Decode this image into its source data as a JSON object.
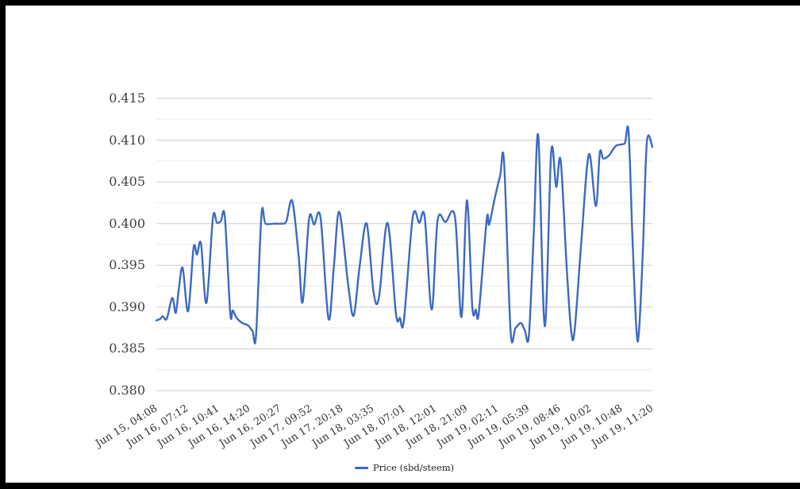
{
  "frame": {
    "color": "#000000",
    "background": "#ffffff"
  },
  "chart_data": {
    "type": "line",
    "title": "",
    "legend": {
      "label": "Price (sbd/steem)",
      "position": "bottom-center"
    },
    "grid": {
      "major_color": "#cccccc",
      "minor_color": "#ebebeb",
      "vertical": false
    },
    "y_axis": {
      "min": 0.38,
      "max": 0.415,
      "major_step": 0.005,
      "minor_step": 0.0025,
      "tick_labels": [
        "0.415",
        "0.410",
        "0.405",
        "0.400",
        "0.395",
        "0.390",
        "0.385",
        "0.380"
      ],
      "label_color": "#404040"
    },
    "x_axis": {
      "tick_labels": [
        "Jun 15, 04:08",
        "Jun 16, 07:12",
        "Jun 16, 10:41",
        "Jun 16, 14:20",
        "Jun 16, 20:27",
        "Jun 17, 09:52",
        "Jun 17, 20:18",
        "Jun 18, 03:35",
        "Jun 18, 07:01",
        "Jun 18, 12:01",
        "Jun 18, 21:09",
        "Jun 19, 02:11",
        "Jun 19, 05:39",
        "Jun 19, 08:46",
        "Jun 19, 10:02",
        "Jun 19, 10:48",
        "Jun 19, 11:20"
      ],
      "label_color": "#333333",
      "label_rotation_deg": -32
    },
    "series": [
      {
        "name": "Price (sbd/steem)",
        "color": "#3d6ac0",
        "points": [
          [
            0.0,
            0.3884
          ],
          [
            0.008,
            0.3886
          ],
          [
            0.013,
            0.3889
          ],
          [
            0.021,
            0.3886
          ],
          [
            0.032,
            0.3911
          ],
          [
            0.039,
            0.3893
          ],
          [
            0.045,
            0.392
          ],
          [
            0.053,
            0.3947
          ],
          [
            0.064,
            0.3895
          ],
          [
            0.075,
            0.3971
          ],
          [
            0.082,
            0.3963
          ],
          [
            0.09,
            0.3976
          ],
          [
            0.101,
            0.3905
          ],
          [
            0.114,
            0.4007
          ],
          [
            0.122,
            0.4001
          ],
          [
            0.13,
            0.4003
          ],
          [
            0.138,
            0.4008
          ],
          [
            0.149,
            0.3893
          ],
          [
            0.154,
            0.3896
          ],
          [
            0.162,
            0.3887
          ],
          [
            0.173,
            0.3881
          ],
          [
            0.185,
            0.3878
          ],
          [
            0.194,
            0.3871
          ],
          [
            0.201,
            0.3866
          ],
          [
            0.212,
            0.4011
          ],
          [
            0.22,
            0.4
          ],
          [
            0.238,
            0.4
          ],
          [
            0.252,
            0.4
          ],
          [
            0.262,
            0.4003
          ],
          [
            0.274,
            0.4027
          ],
          [
            0.287,
            0.396
          ],
          [
            0.295,
            0.3906
          ],
          [
            0.308,
            0.4006
          ],
          [
            0.318,
            0.3999
          ],
          [
            0.331,
            0.4007
          ],
          [
            0.347,
            0.3886
          ],
          [
            0.358,
            0.395
          ],
          [
            0.369,
            0.4014
          ],
          [
            0.387,
            0.3925
          ],
          [
            0.398,
            0.389
          ],
          [
            0.41,
            0.395
          ],
          [
            0.424,
            0.4
          ],
          [
            0.438,
            0.3917
          ],
          [
            0.449,
            0.3912
          ],
          [
            0.466,
            0.4001
          ],
          [
            0.483,
            0.3892
          ],
          [
            0.491,
            0.3887
          ],
          [
            0.499,
            0.3884
          ],
          [
            0.517,
            0.4008
          ],
          [
            0.53,
            0.4001
          ],
          [
            0.541,
            0.4008
          ],
          [
            0.555,
            0.3897
          ],
          [
            0.567,
            0.4004
          ],
          [
            0.583,
            0.4002
          ],
          [
            0.602,
            0.4008
          ],
          [
            0.615,
            0.3888
          ],
          [
            0.626,
            0.4028
          ],
          [
            0.637,
            0.39
          ],
          [
            0.644,
            0.3897
          ],
          [
            0.65,
            0.3893
          ],
          [
            0.666,
            0.4005
          ],
          [
            0.671,
            0.3999
          ],
          [
            0.682,
            0.403
          ],
          [
            0.693,
            0.4057
          ],
          [
            0.701,
            0.4074
          ],
          [
            0.714,
            0.3872
          ],
          [
            0.724,
            0.3875
          ],
          [
            0.735,
            0.3881
          ],
          [
            0.743,
            0.3872
          ],
          [
            0.751,
            0.3866
          ],
          [
            0.761,
            0.399
          ],
          [
            0.77,
            0.4105
          ],
          [
            0.783,
            0.3877
          ],
          [
            0.796,
            0.4086
          ],
          [
            0.806,
            0.4044
          ],
          [
            0.815,
            0.4076
          ],
          [
            0.827,
            0.395
          ],
          [
            0.836,
            0.3873
          ],
          [
            0.843,
            0.3871
          ],
          [
            0.857,
            0.398
          ],
          [
            0.872,
            0.4083
          ],
          [
            0.886,
            0.4021
          ],
          [
            0.894,
            0.4085
          ],
          [
            0.901,
            0.4078
          ],
          [
            0.913,
            0.4082
          ],
          [
            0.926,
            0.4093
          ],
          [
            0.939,
            0.4095
          ],
          [
            0.945,
            0.4097
          ],
          [
            0.952,
            0.411
          ],
          [
            0.96,
            0.398
          ],
          [
            0.968,
            0.3872
          ],
          [
            0.973,
            0.3871
          ],
          [
            0.981,
            0.397
          ],
          [
            0.989,
            0.4098
          ],
          [
            1.0,
            0.4092
          ]
        ]
      }
    ]
  }
}
